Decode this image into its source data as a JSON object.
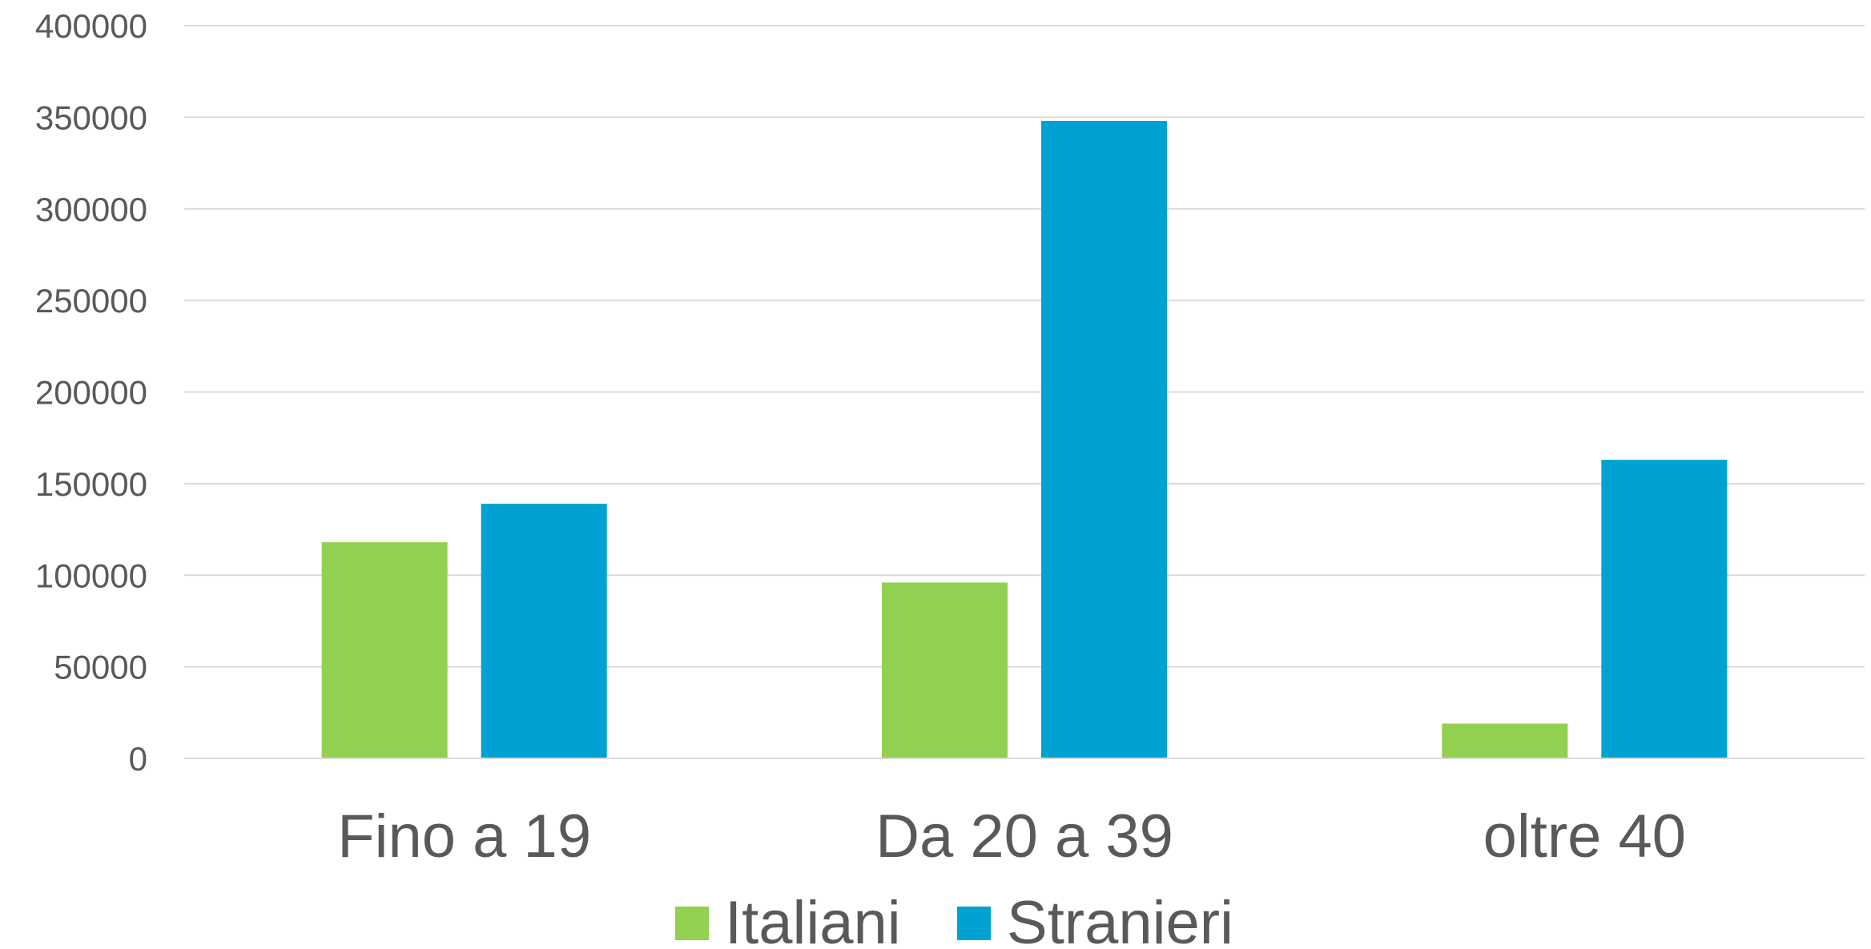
{
  "chart_data": {
    "type": "bar",
    "title": "",
    "xlabel": "",
    "ylabel": "",
    "categories": [
      "Fino a 19",
      "Da 20 a 39",
      "oltre 40"
    ],
    "series": [
      {
        "name": "Italiani",
        "color": "#92d050",
        "values": [
          118000,
          96000,
          19000
        ]
      },
      {
        "name": "Stranieri",
        "color": "#00a2d3",
        "values": [
          139000,
          348000,
          163000
        ]
      }
    ],
    "ylim": [
      0,
      400000
    ],
    "yticks": [
      "0",
      "50000",
      "100000",
      "150000",
      "200000",
      "250000",
      "300000",
      "350000",
      "400000"
    ],
    "grid": true,
    "legend": "bottom-center"
  }
}
